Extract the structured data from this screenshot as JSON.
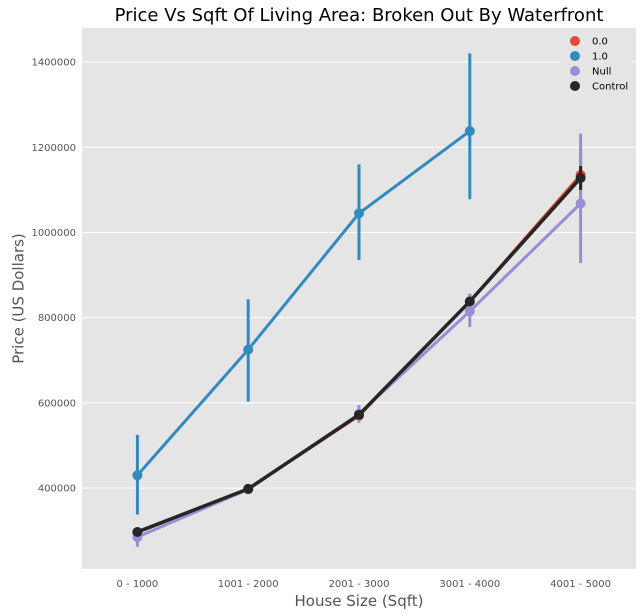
{
  "chart_data": {
    "type": "line",
    "title": "Price Vs Sqft Of Living Area: Broken Out By Waterfront",
    "xlabel": "House Size (Sqft)",
    "ylabel": "Price (US Dollars)",
    "categories": [
      "0 - 1000",
      "1001 - 2000",
      "2001 - 3000",
      "3001 - 4000",
      "4001 - 5000"
    ],
    "ylim": [
      210000,
      1480000
    ],
    "yticks": [
      400000,
      600000,
      800000,
      1000000,
      1200000,
      1400000
    ],
    "ytick_labels": [
      "400000",
      "600000",
      "800000",
      "1000000",
      "1200000",
      "1400000"
    ],
    "grid": true,
    "legend_position": "top-right",
    "series": [
      {
        "name": "0.0",
        "color": "#e24a33",
        "values": [
          296000,
          398000,
          570000,
          838000,
          1135000
        ],
        "err_low": [
          286000,
          392000,
          558000,
          820000,
          1075000
        ],
        "err_high": [
          304000,
          404000,
          582000,
          856000,
          1195000
        ]
      },
      {
        "name": "1.0",
        "color": "#348abd",
        "values": [
          430000,
          725000,
          1045000,
          1238000,
          null
        ],
        "err_low": [
          338000,
          603000,
          935000,
          1078000,
          null
        ],
        "err_high": [
          525000,
          843000,
          1160000,
          1420000,
          null
        ]
      },
      {
        "name": "Null",
        "color": "#988ed5",
        "values": [
          285000,
          397000,
          574000,
          815000,
          1068000
        ],
        "err_low": [
          262000,
          387000,
          553000,
          778000,
          928000
        ],
        "err_high": [
          306000,
          407000,
          595000,
          855000,
          1232000
        ]
      },
      {
        "name": "Control",
        "color": "#262626",
        "values": [
          297000,
          398000,
          572000,
          838000,
          1128000
        ],
        "err_low": [
          291000,
          394000,
          566000,
          830000,
          1100000
        ],
        "err_high": [
          303000,
          402000,
          578000,
          846000,
          1156000
        ]
      }
    ]
  }
}
